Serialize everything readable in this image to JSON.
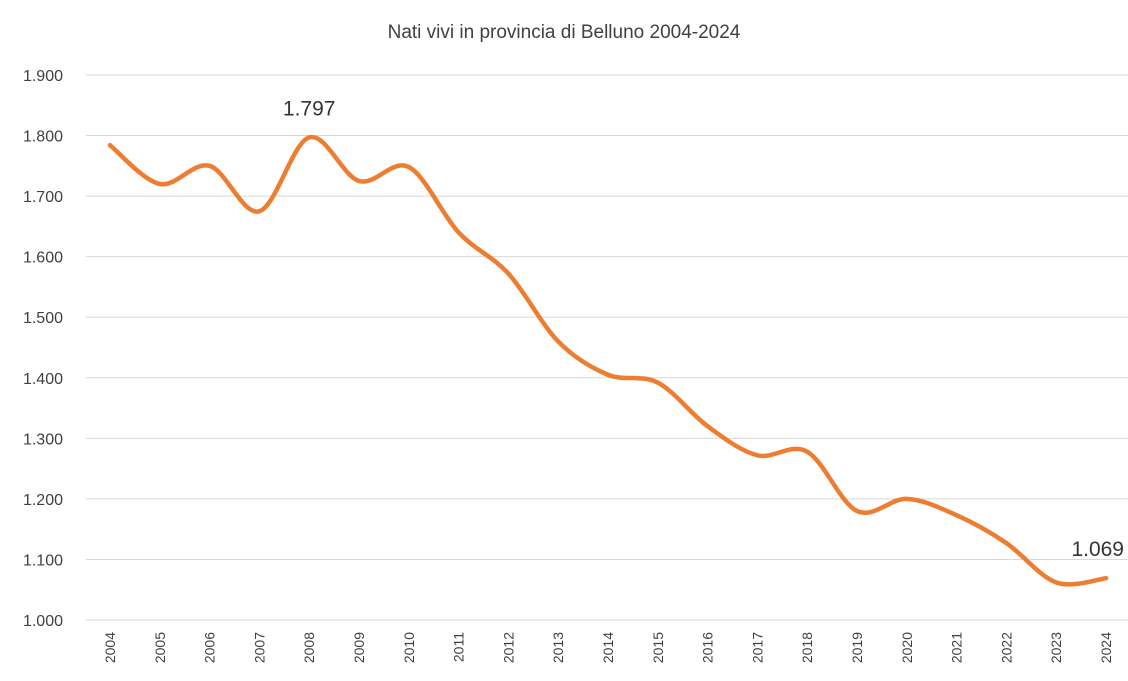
{
  "chart_data": {
    "type": "line",
    "title": "Nati vivi in provincia di Belluno 2004-2024",
    "xlabel": "",
    "ylabel": "",
    "categories": [
      "2004",
      "2005",
      "2006",
      "2007",
      "2008",
      "2009",
      "2010",
      "2011",
      "2012",
      "2013",
      "2014",
      "2015",
      "2016",
      "2017",
      "2018",
      "2019",
      "2020",
      "2021",
      "2022",
      "2023",
      "2024"
    ],
    "series": [
      {
        "values": [
          1784,
          1720,
          1750,
          1675,
          1797,
          1725,
          1748,
          1640,
          1572,
          1460,
          1405,
          1392,
          1320,
          1272,
          1278,
          1180,
          1200,
          1173,
          1127,
          1062,
          1069
        ],
        "color": "#ed7d31"
      }
    ],
    "ylim": [
      1000,
      1900
    ],
    "yticks": [
      1000,
      1100,
      1200,
      1300,
      1400,
      1500,
      1600,
      1700,
      1800,
      1900
    ],
    "ytick_labels": [
      "1.000",
      "1.100",
      "1.200",
      "1.300",
      "1.400",
      "1.500",
      "1.600",
      "1.700",
      "1.800",
      "1.900"
    ],
    "data_labels": [
      {
        "category": "2008",
        "text": "1.797"
      },
      {
        "category": "2024",
        "text": "1.069"
      }
    ],
    "grid": true,
    "smooth": true,
    "legend": "none"
  }
}
